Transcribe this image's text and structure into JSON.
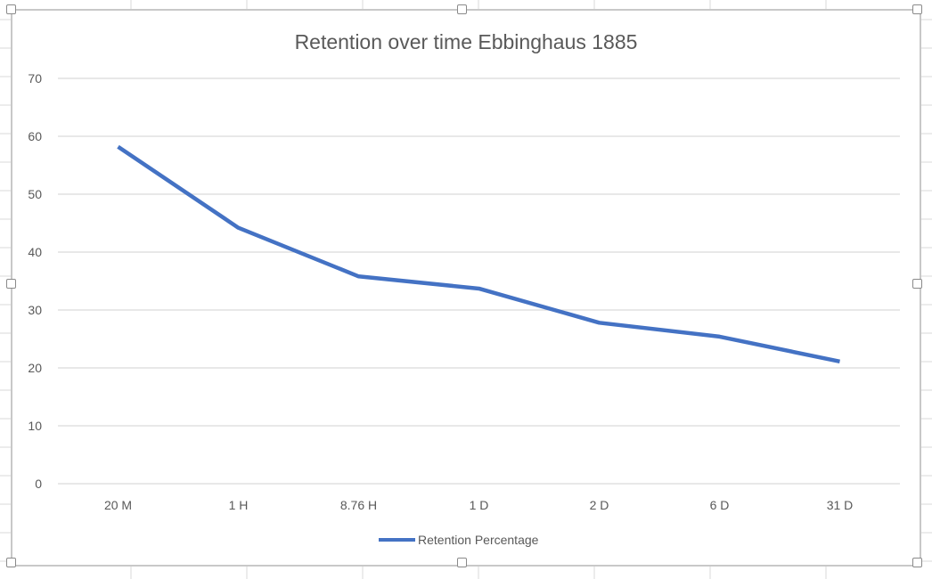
{
  "chart_data": {
    "type": "line",
    "title": "Retention over time Ebbinghaus 1885",
    "categories": [
      "20 M",
      "1 H",
      "8.76 H",
      "1 D",
      "2 D",
      "6 D",
      "31 D"
    ],
    "series": [
      {
        "name": "Retention Percentage",
        "values": [
          58.2,
          44.2,
          35.8,
          33.7,
          27.8,
          25.4,
          21.1
        ],
        "color": "#4472c4"
      }
    ],
    "xlabel": "",
    "ylabel": "",
    "ylim": [
      0,
      70
    ],
    "yticks": [
      0,
      10,
      20,
      30,
      40,
      50,
      60,
      70
    ],
    "grid": true,
    "legend": "bottom"
  }
}
